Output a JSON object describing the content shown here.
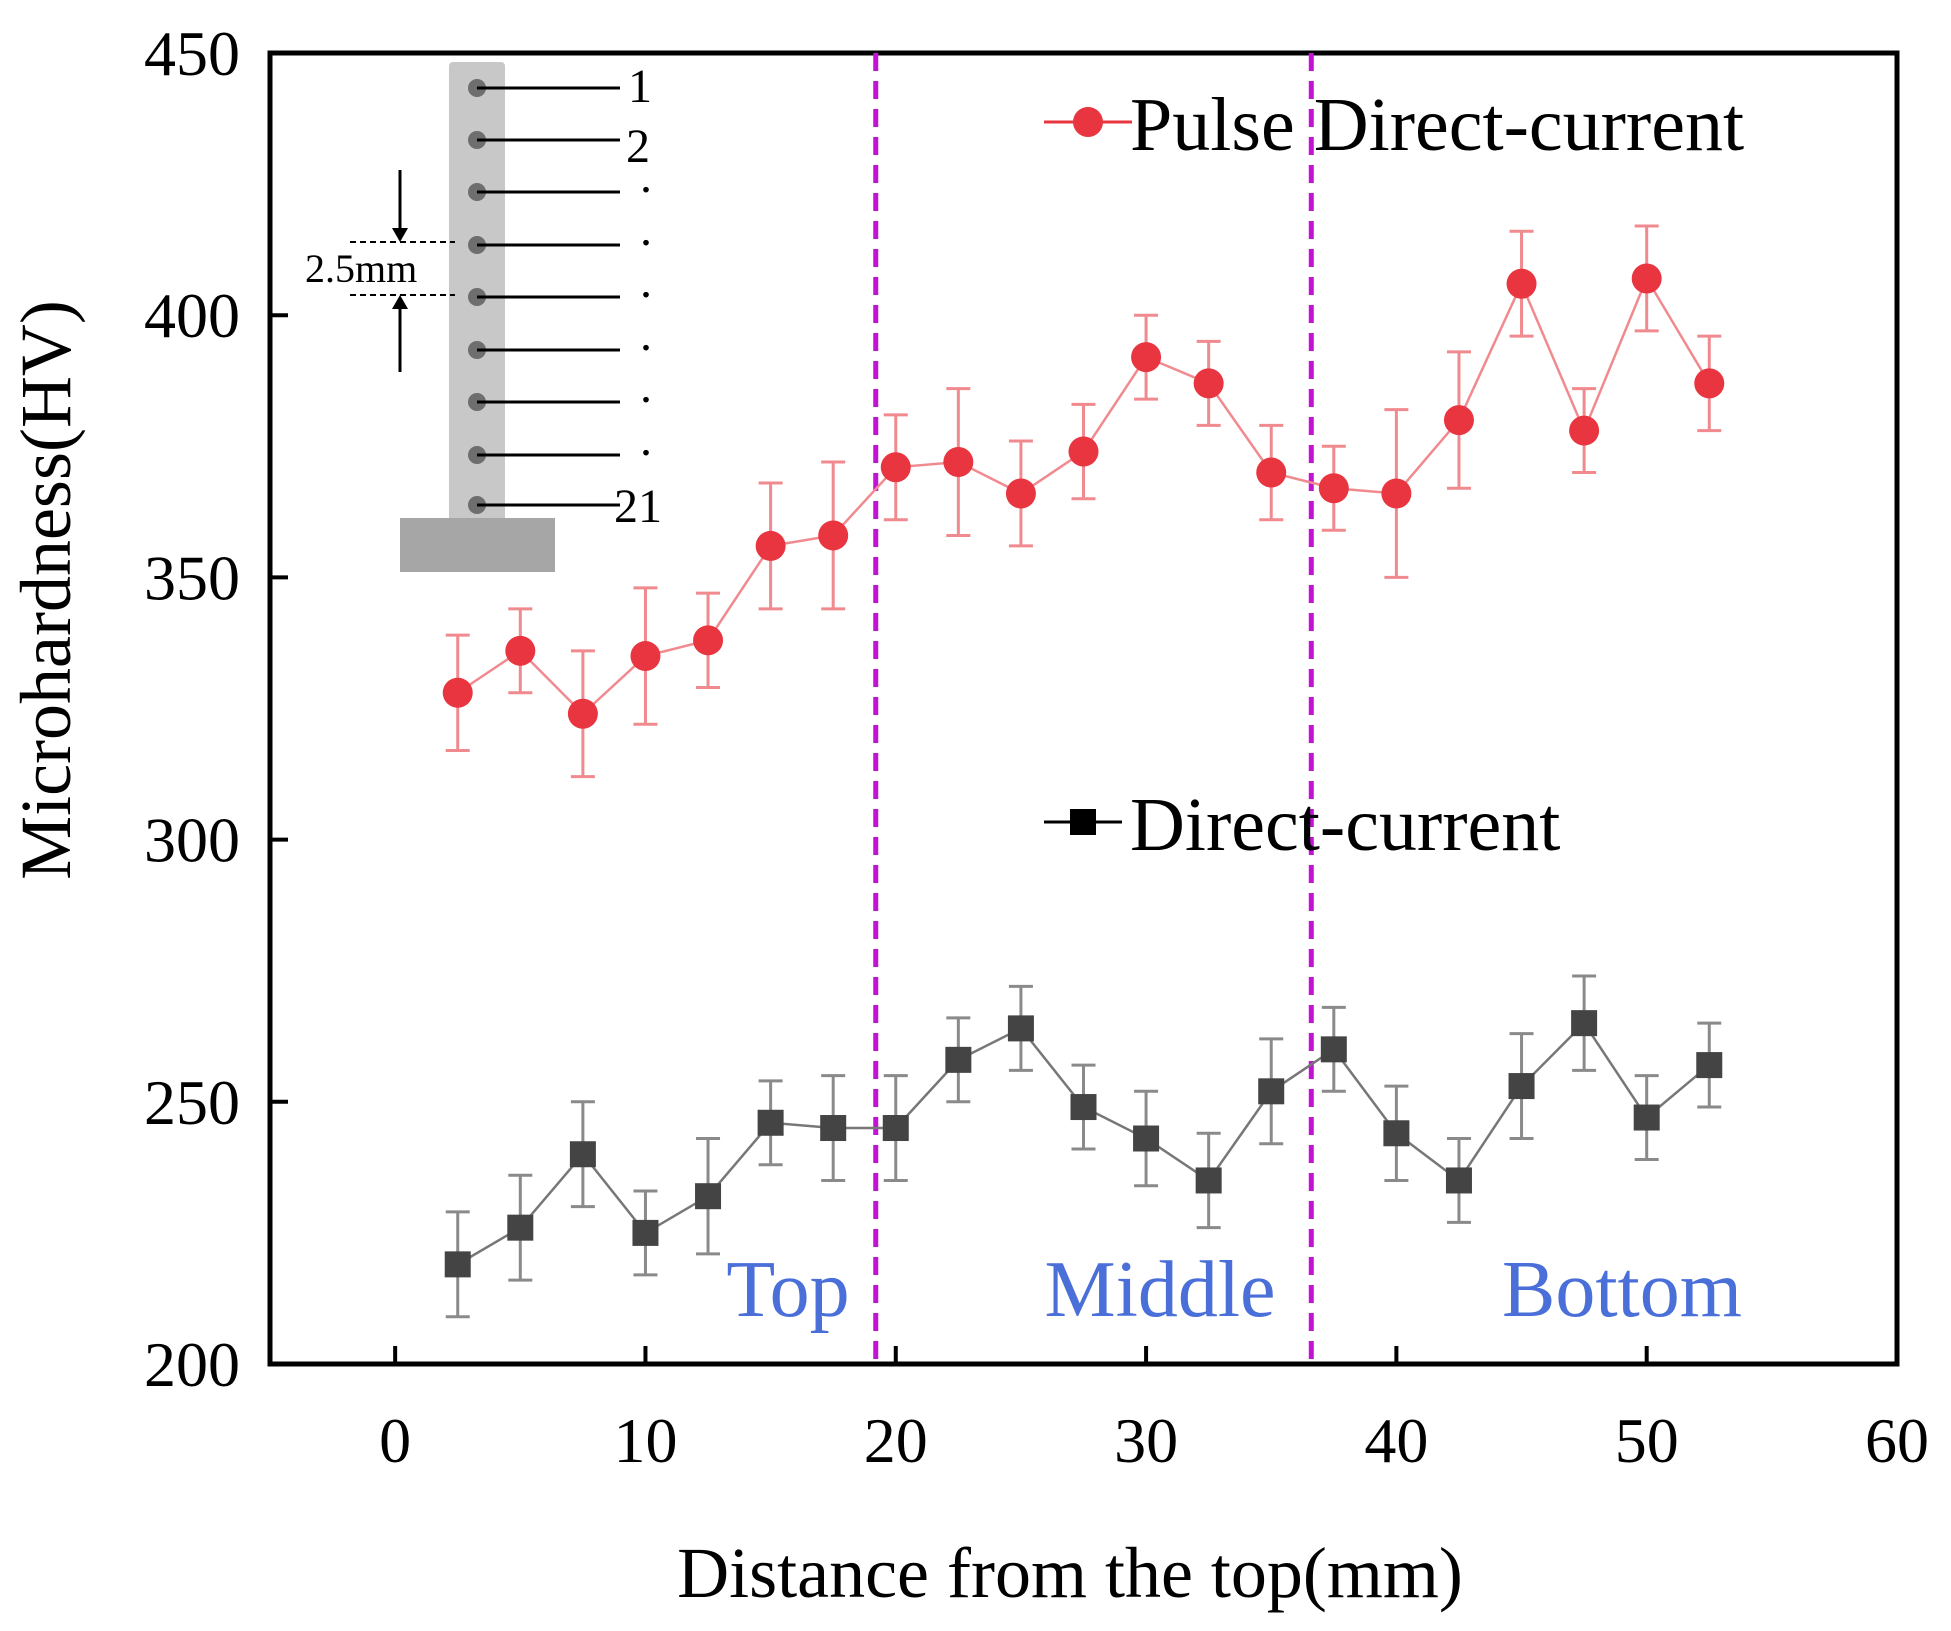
{
  "chart_data": {
    "type": "line",
    "title": "",
    "xlabel": "Distance from the top(mm)",
    "ylabel": "Microhardness(HV)",
    "xlim": [
      -5,
      60
    ],
    "ylim": [
      200,
      450
    ],
    "x_ticks": [
      0,
      10,
      20,
      30,
      40,
      50,
      60
    ],
    "y_ticks": [
      200,
      250,
      300,
      350,
      400,
      450
    ],
    "x_tick_labels": [
      "0",
      "10",
      "20",
      "30",
      "40",
      "50",
      "60"
    ],
    "y_tick_labels": [
      "200",
      "250",
      "300",
      "350",
      "400",
      "450"
    ],
    "x": [
      2.5,
      5,
      7.5,
      10,
      12.5,
      15,
      17.5,
      20,
      22.5,
      25,
      27.5,
      30,
      32.5,
      35,
      37.5,
      40,
      42.5,
      45,
      47.5,
      50,
      52.5
    ],
    "series": [
      {
        "name": "Pulse Direct-current",
        "color": "#e8353f",
        "marker": "circle",
        "values": [
          328,
          336,
          324,
          335,
          338,
          356,
          358,
          371,
          372,
          366,
          374,
          392,
          387,
          370,
          367,
          366,
          380,
          406,
          378,
          407,
          387
        ],
        "errors": [
          11,
          8,
          12,
          13,
          9,
          12,
          14,
          10,
          14,
          10,
          9,
          8,
          8,
          9,
          8,
          16,
          13,
          10,
          8,
          10,
          9
        ]
      },
      {
        "name": "Direct-current",
        "color": "#444444",
        "marker": "square",
        "values": [
          219,
          226,
          240,
          225,
          232,
          246,
          245,
          245,
          258,
          264,
          249,
          243,
          235,
          252,
          260,
          244,
          235,
          253,
          265,
          247,
          257
        ],
        "errors": [
          10,
          10,
          10,
          8,
          11,
          8,
          10,
          10,
          8,
          8,
          8,
          9,
          9,
          10,
          8,
          9,
          8,
          10,
          9,
          8,
          8
        ]
      }
    ],
    "legend": [
      {
        "label": "Pulse Direct-current",
        "marker": "circle",
        "color": "#e8353f",
        "placement": "top-right"
      },
      {
        "label": "Direct-current",
        "marker": "square",
        "color": "#000000",
        "placement": "middle-right"
      }
    ],
    "region_dividers_x": [
      19.2,
      36.6
    ],
    "divider_color": "#c311d6",
    "regions": [
      {
        "label": "Top",
        "x": 15.5
      },
      {
        "label": "Middle",
        "x": 30.5
      },
      {
        "label": "Bottom",
        "x": 49
      }
    ],
    "region_label_color": "#4a6fd8",
    "inset": {
      "description_labels": [
        "1",
        "2",
        "21"
      ],
      "dots": [
        ".",
        ".",
        ".",
        ".",
        ".",
        "."
      ],
      "spacing_label": "2.5mm"
    }
  }
}
